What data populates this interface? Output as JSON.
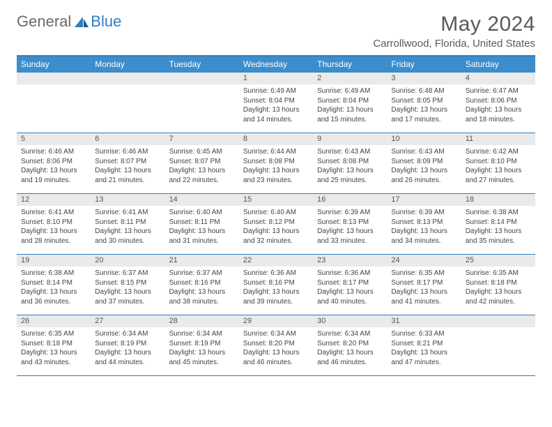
{
  "brand": {
    "part1": "General",
    "part2": "Blue"
  },
  "title": "May 2024",
  "location": "Carrollwood, Florida, United States",
  "colors": {
    "header_bg": "#3c8dcc",
    "border": "#2f7ec2",
    "band": "#eaeaea",
    "text": "#444444"
  },
  "dow": [
    "Sunday",
    "Monday",
    "Tuesday",
    "Wednesday",
    "Thursday",
    "Friday",
    "Saturday"
  ],
  "weeks": [
    [
      {
        "n": "",
        "sr": "",
        "ss": "",
        "dl": ""
      },
      {
        "n": "",
        "sr": "",
        "ss": "",
        "dl": ""
      },
      {
        "n": "",
        "sr": "",
        "ss": "",
        "dl": ""
      },
      {
        "n": "1",
        "sr": "Sunrise: 6:49 AM",
        "ss": "Sunset: 8:04 PM",
        "dl": "Daylight: 13 hours and 14 minutes."
      },
      {
        "n": "2",
        "sr": "Sunrise: 6:49 AM",
        "ss": "Sunset: 8:04 PM",
        "dl": "Daylight: 13 hours and 15 minutes."
      },
      {
        "n": "3",
        "sr": "Sunrise: 6:48 AM",
        "ss": "Sunset: 8:05 PM",
        "dl": "Daylight: 13 hours and 17 minutes."
      },
      {
        "n": "4",
        "sr": "Sunrise: 6:47 AM",
        "ss": "Sunset: 8:06 PM",
        "dl": "Daylight: 13 hours and 18 minutes."
      }
    ],
    [
      {
        "n": "5",
        "sr": "Sunrise: 6:46 AM",
        "ss": "Sunset: 8:06 PM",
        "dl": "Daylight: 13 hours and 19 minutes."
      },
      {
        "n": "6",
        "sr": "Sunrise: 6:46 AM",
        "ss": "Sunset: 8:07 PM",
        "dl": "Daylight: 13 hours and 21 minutes."
      },
      {
        "n": "7",
        "sr": "Sunrise: 6:45 AM",
        "ss": "Sunset: 8:07 PM",
        "dl": "Daylight: 13 hours and 22 minutes."
      },
      {
        "n": "8",
        "sr": "Sunrise: 6:44 AM",
        "ss": "Sunset: 8:08 PM",
        "dl": "Daylight: 13 hours and 23 minutes."
      },
      {
        "n": "9",
        "sr": "Sunrise: 6:43 AM",
        "ss": "Sunset: 8:08 PM",
        "dl": "Daylight: 13 hours and 25 minutes."
      },
      {
        "n": "10",
        "sr": "Sunrise: 6:43 AM",
        "ss": "Sunset: 8:09 PM",
        "dl": "Daylight: 13 hours and 26 minutes."
      },
      {
        "n": "11",
        "sr": "Sunrise: 6:42 AM",
        "ss": "Sunset: 8:10 PM",
        "dl": "Daylight: 13 hours and 27 minutes."
      }
    ],
    [
      {
        "n": "12",
        "sr": "Sunrise: 6:41 AM",
        "ss": "Sunset: 8:10 PM",
        "dl": "Daylight: 13 hours and 28 minutes."
      },
      {
        "n": "13",
        "sr": "Sunrise: 6:41 AM",
        "ss": "Sunset: 8:11 PM",
        "dl": "Daylight: 13 hours and 30 minutes."
      },
      {
        "n": "14",
        "sr": "Sunrise: 6:40 AM",
        "ss": "Sunset: 8:11 PM",
        "dl": "Daylight: 13 hours and 31 minutes."
      },
      {
        "n": "15",
        "sr": "Sunrise: 6:40 AM",
        "ss": "Sunset: 8:12 PM",
        "dl": "Daylight: 13 hours and 32 minutes."
      },
      {
        "n": "16",
        "sr": "Sunrise: 6:39 AM",
        "ss": "Sunset: 8:13 PM",
        "dl": "Daylight: 13 hours and 33 minutes."
      },
      {
        "n": "17",
        "sr": "Sunrise: 6:39 AM",
        "ss": "Sunset: 8:13 PM",
        "dl": "Daylight: 13 hours and 34 minutes."
      },
      {
        "n": "18",
        "sr": "Sunrise: 6:38 AM",
        "ss": "Sunset: 8:14 PM",
        "dl": "Daylight: 13 hours and 35 minutes."
      }
    ],
    [
      {
        "n": "19",
        "sr": "Sunrise: 6:38 AM",
        "ss": "Sunset: 8:14 PM",
        "dl": "Daylight: 13 hours and 36 minutes."
      },
      {
        "n": "20",
        "sr": "Sunrise: 6:37 AM",
        "ss": "Sunset: 8:15 PM",
        "dl": "Daylight: 13 hours and 37 minutes."
      },
      {
        "n": "21",
        "sr": "Sunrise: 6:37 AM",
        "ss": "Sunset: 8:16 PM",
        "dl": "Daylight: 13 hours and 38 minutes."
      },
      {
        "n": "22",
        "sr": "Sunrise: 6:36 AM",
        "ss": "Sunset: 8:16 PM",
        "dl": "Daylight: 13 hours and 39 minutes."
      },
      {
        "n": "23",
        "sr": "Sunrise: 6:36 AM",
        "ss": "Sunset: 8:17 PM",
        "dl": "Daylight: 13 hours and 40 minutes."
      },
      {
        "n": "24",
        "sr": "Sunrise: 6:35 AM",
        "ss": "Sunset: 8:17 PM",
        "dl": "Daylight: 13 hours and 41 minutes."
      },
      {
        "n": "25",
        "sr": "Sunrise: 6:35 AM",
        "ss": "Sunset: 8:18 PM",
        "dl": "Daylight: 13 hours and 42 minutes."
      }
    ],
    [
      {
        "n": "26",
        "sr": "Sunrise: 6:35 AM",
        "ss": "Sunset: 8:18 PM",
        "dl": "Daylight: 13 hours and 43 minutes."
      },
      {
        "n": "27",
        "sr": "Sunrise: 6:34 AM",
        "ss": "Sunset: 8:19 PM",
        "dl": "Daylight: 13 hours and 44 minutes."
      },
      {
        "n": "28",
        "sr": "Sunrise: 6:34 AM",
        "ss": "Sunset: 8:19 PM",
        "dl": "Daylight: 13 hours and 45 minutes."
      },
      {
        "n": "29",
        "sr": "Sunrise: 6:34 AM",
        "ss": "Sunset: 8:20 PM",
        "dl": "Daylight: 13 hours and 46 minutes."
      },
      {
        "n": "30",
        "sr": "Sunrise: 6:34 AM",
        "ss": "Sunset: 8:20 PM",
        "dl": "Daylight: 13 hours and 46 minutes."
      },
      {
        "n": "31",
        "sr": "Sunrise: 6:33 AM",
        "ss": "Sunset: 8:21 PM",
        "dl": "Daylight: 13 hours and 47 minutes."
      },
      {
        "n": "",
        "sr": "",
        "ss": "",
        "dl": ""
      }
    ]
  ]
}
